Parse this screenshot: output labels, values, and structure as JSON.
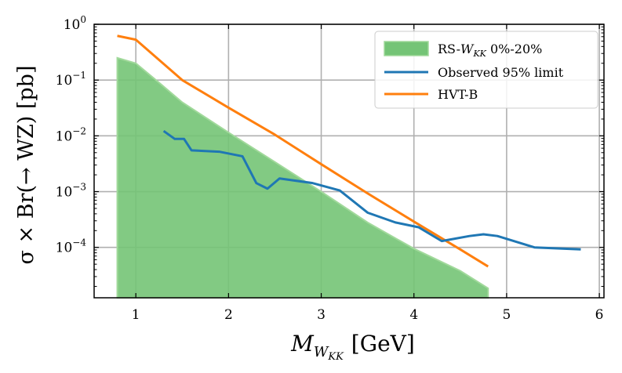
{
  "chart_data": {
    "type": "line",
    "xlabel": "M",
    "xlabel_sub": "W",
    "xlabel_subsub": "KK",
    "xlabel_unit": "[GeV]",
    "ylabel": "σ × Br(→ WZ) [pb]",
    "xlim": [
      0.55,
      6.05
    ],
    "ylim": [
      1.25e-05,
      1.0
    ],
    "yscale": "log",
    "grid": true,
    "legend_position": "top-right",
    "x_ticks": [
      {
        "value": 1,
        "label": "1"
      },
      {
        "value": 2,
        "label": "2"
      },
      {
        "value": 3,
        "label": "3"
      },
      {
        "value": 4,
        "label": "4"
      },
      {
        "value": 5,
        "label": "5"
      },
      {
        "value": 6,
        "label": "6"
      }
    ],
    "y_ticks": [
      {
        "value": 1,
        "base": "10",
        "exp": "0"
      },
      {
        "value": 0.1,
        "base": "10",
        "exp": "−1"
      },
      {
        "value": 0.01,
        "base": "10",
        "exp": "−2"
      },
      {
        "value": 0.001,
        "base": "10",
        "exp": "−3"
      },
      {
        "value": 0.0001,
        "base": "10",
        "exp": "−4"
      }
    ],
    "band": {
      "name": "RS-W_KK 0%-20%",
      "legend_label_prefix": "RS-",
      "legend_label_sym": "W",
      "legend_label_sub": "KK",
      "legend_label_suffix": " 0%-20%",
      "color": "#74c476",
      "edge_color": "#a1d99b",
      "x": [
        0.8,
        1.0,
        1.25,
        1.5,
        2.0,
        2.5,
        3.0,
        3.5,
        4.0,
        4.5,
        4.8
      ],
      "y": [
        0.25,
        0.2,
        0.09,
        0.04,
        0.0115,
        0.0034,
        0.001,
        0.00028,
        9.5e-05,
        3.8e-05,
        1.85e-05
      ]
    },
    "series": [
      {
        "name": "Observed 95% limit",
        "color": "#1f77b4",
        "x": [
          1.3,
          1.42,
          1.52,
          1.6,
          1.9,
          2.15,
          2.3,
          2.42,
          2.55,
          2.9,
          3.2,
          3.5,
          3.8,
          4.05,
          4.3,
          4.6,
          4.75,
          4.9,
          5.3,
          5.8
        ],
        "y": [
          0.0122,
          0.0088,
          0.0088,
          0.0055,
          0.0052,
          0.0043,
          0.00142,
          0.00113,
          0.00172,
          0.00143,
          0.00105,
          0.00042,
          0.00028,
          0.00023,
          0.00013,
          0.00016,
          0.000172,
          0.00016,
          0.0001,
          9.2e-05
        ]
      },
      {
        "name": "HVT-B",
        "color": "#ff7f0e",
        "x": [
          0.8,
          1.0,
          1.5,
          2.0,
          2.5,
          3.0,
          3.5,
          4.0,
          4.5,
          4.8
        ],
        "y": [
          0.62,
          0.53,
          0.1,
          0.032,
          0.0105,
          0.0031,
          0.00093,
          0.00029,
          9.2e-05,
          4.55e-05
        ]
      }
    ]
  }
}
